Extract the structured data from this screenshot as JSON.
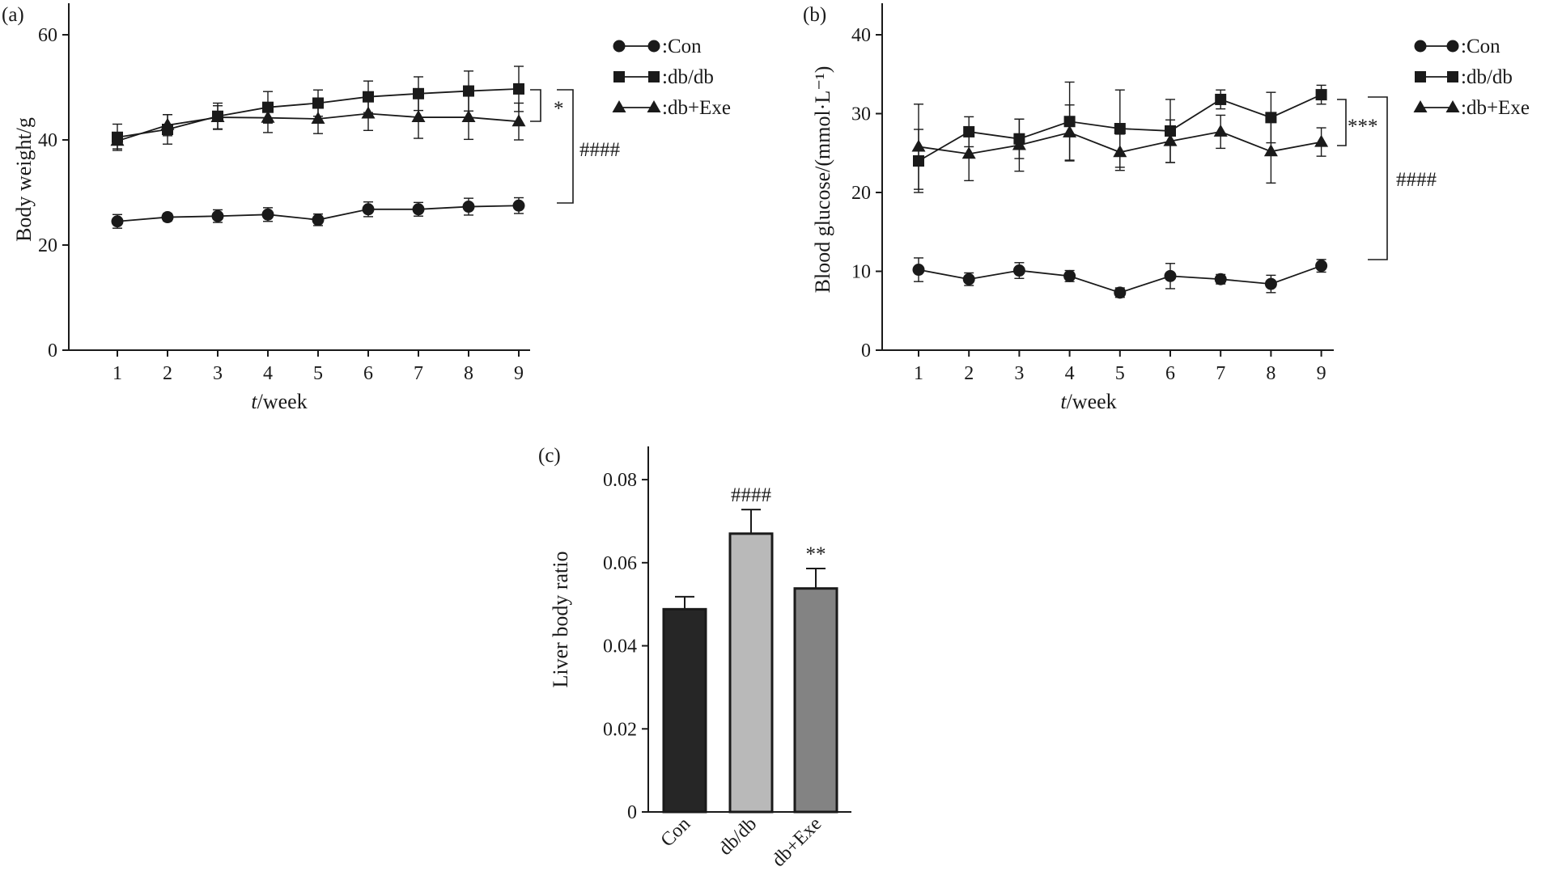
{
  "chart_data": [
    {
      "panel": "(a)",
      "type": "line",
      "xlabel_italic": "t",
      "xlabel_rest": "/week",
      "ylabel": "Body weight/g",
      "x": [
        1,
        2,
        3,
        4,
        5,
        6,
        7,
        8,
        9
      ],
      "x_ticks": [
        "1",
        "2",
        "3",
        "4",
        "5",
        "6",
        "7",
        "8",
        "9"
      ],
      "y_ticks": [
        "0",
        "20",
        "40",
        "60"
      ],
      "ylim": [
        0,
        66
      ],
      "series": [
        {
          "name": ":Con",
          "marker": "circle",
          "values": [
            24.5,
            25.3,
            25.5,
            25.8,
            24.8,
            26.8,
            26.8,
            27.3,
            27.5
          ],
          "err": [
            1.3,
            0.7,
            1.2,
            1.3,
            1.1,
            1.4,
            1.3,
            1.6,
            1.5
          ]
        },
        {
          "name": ":db/db",
          "marker": "square",
          "values": [
            40.5,
            42.0,
            44.5,
            46.2,
            47.0,
            48.2,
            48.8,
            49.3,
            49.7
          ],
          "err": [
            2.5,
            2.8,
            2.5,
            3.0,
            2.5,
            3.0,
            3.2,
            3.8,
            4.3
          ]
        },
        {
          "name": ":db+Exe",
          "marker": "triangle",
          "values": [
            39.8,
            42.8,
            44.3,
            44.2,
            44.0,
            45.0,
            44.3,
            44.3,
            43.5
          ],
          "err": [
            1.5,
            2.0,
            2.2,
            2.8,
            2.8,
            3.2,
            4.0,
            4.2,
            3.5
          ]
        }
      ],
      "annotations": [
        "*",
        "####"
      ],
      "grid": false,
      "legend_position": "top-right"
    },
    {
      "panel": "(b)",
      "type": "line",
      "xlabel_italic": "t",
      "xlabel_rest": "/week",
      "ylabel": "Blood glucose/(mmol·L⁻¹)",
      "x": [
        1,
        2,
        3,
        4,
        5,
        6,
        7,
        8,
        9
      ],
      "x_ticks": [
        "1",
        "2",
        "3",
        "4",
        "5",
        "6",
        "7",
        "8",
        "9"
      ],
      "y_ticks": [
        "0",
        "10",
        "20",
        "30",
        "40"
      ],
      "ylim": [
        0,
        44
      ],
      "series": [
        {
          "name": ":Con",
          "marker": "circle",
          "values": [
            10.2,
            9.0,
            10.1,
            9.4,
            7.3,
            9.4,
            9.0,
            8.4,
            10.7
          ],
          "err": [
            1.5,
            0.8,
            1.0,
            0.7,
            0.6,
            1.6,
            0.6,
            1.1,
            0.8
          ]
        },
        {
          "name": ":db/db",
          "marker": "square",
          "values": [
            24.0,
            27.7,
            26.8,
            29.0,
            28.1,
            27.8,
            31.8,
            29.5,
            32.4
          ],
          "err": [
            4.0,
            1.9,
            2.5,
            5.0,
            4.9,
            4.0,
            1.2,
            3.2,
            1.2
          ]
        },
        {
          "name": ":db+Exe",
          "marker": "triangle",
          "values": [
            25.8,
            24.9,
            26.0,
            27.6,
            25.1,
            26.5,
            27.7,
            25.2,
            26.4
          ],
          "err": [
            5.4,
            3.4,
            3.3,
            3.5,
            2.3,
            2.7,
            2.1,
            4.0,
            1.8
          ]
        }
      ],
      "annotations": [
        "***",
        "####"
      ],
      "grid": false,
      "legend_position": "top-right"
    },
    {
      "panel": "(c)",
      "type": "bar",
      "ylabel": "Liver body ratio",
      "categories": [
        "Con",
        "db/db",
        "db+Exe"
      ],
      "values": [
        0.0488,
        0.067,
        0.0538
      ],
      "err": [
        0.003,
        0.0058,
        0.0048
      ],
      "y_ticks": [
        "0",
        "0.02",
        "0.04",
        "0.06",
        "0.08"
      ],
      "ylim": [
        0,
        0.088
      ],
      "bar_colors": [
        "#262626",
        "#b9b9b9",
        "#838383"
      ],
      "annotations": [
        "",
        "####",
        "**"
      ],
      "grid": false
    }
  ]
}
